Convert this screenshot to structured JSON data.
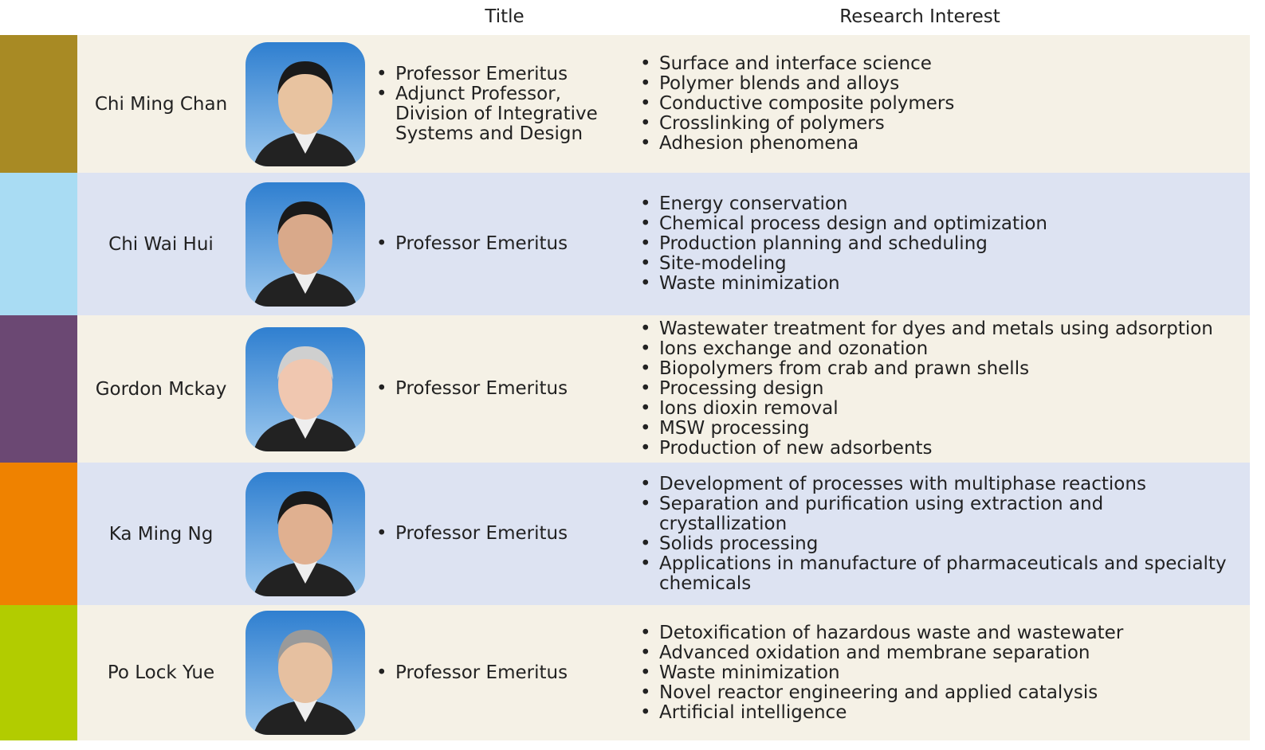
{
  "header": {
    "title": "Title",
    "research_interest": "Research Interest"
  },
  "people": [
    {
      "name": "Chi Ming Chan",
      "titles": [
        "Professor Emeritus",
        "Adjunct Professor, Division of Integrative Systems and Design"
      ],
      "interests": [
        "Surface and interface science",
        "Polymer blends and alloys",
        "Conductive composite polymers",
        "Crosslinking of polymers",
        "Adhesion phenomena"
      ]
    },
    {
      "name": "Chi Wai Hui",
      "titles": [
        "Professor Emeritus"
      ],
      "interests": [
        "Energy conservation",
        "Chemical process design and optimization",
        "Production planning and scheduling",
        "Site-modeling",
        "Waste minimization"
      ]
    },
    {
      "name": "Gordon Mckay",
      "titles": [
        "Professor Emeritus"
      ],
      "interests": [
        "Wastewater treatment for dyes and metals using adsorption",
        "Ions exchange and ozonation",
        "Biopolymers from crab and prawn shells",
        "Processing design",
        "Ions dioxin removal",
        "MSW processing",
        "Production of new adsorbents"
      ]
    },
    {
      "name": "Ka Ming Ng",
      "titles": [
        "Professor Emeritus"
      ],
      "interests": [
        "Development of processes with multiphase reactions",
        "Separation and purification using extraction and crystallization",
        "Solids processing",
        "Applications in manufacture of pharmaceuticals and specialty chemicals"
      ]
    },
    {
      "name": "Po Lock Yue",
      "titles": [
        "Professor Emeritus"
      ],
      "interests": [
        "Detoxification of hazardous waste and wastewater",
        "Advanced oxidation and membrane separation",
        "Waste minimization",
        "Novel reactor engineering and applied catalysis",
        "Artificial intelligence"
      ]
    }
  ]
}
